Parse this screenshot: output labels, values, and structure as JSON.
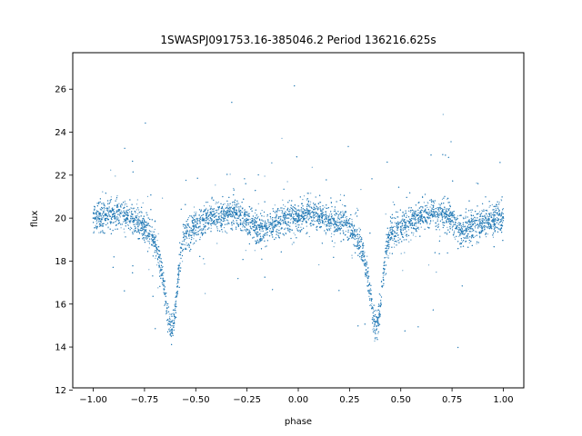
{
  "chart_data": {
    "type": "scatter",
    "title": "1SWASPJ091753.16-385046.2 Period 136216.625s",
    "xlabel": "phase",
    "ylabel": "flux",
    "xlim": [
      -1.1,
      1.1
    ],
    "ylim": [
      12.1,
      27.7
    ],
    "xticks": [
      -1.0,
      -0.75,
      -0.5,
      -0.25,
      0.0,
      0.25,
      0.5,
      0.75,
      1.0
    ],
    "xtick_labels": [
      "−1.00",
      "−0.75",
      "−0.50",
      "−0.25",
      "0.00",
      "0.25",
      "0.50",
      "0.75",
      "1.00"
    ],
    "yticks": [
      12,
      14,
      16,
      18,
      20,
      22,
      24,
      26
    ],
    "ytick_labels": [
      "12",
      "14",
      "16",
      "18",
      "20",
      "22",
      "24",
      "26"
    ],
    "grid": false,
    "point_color": "#1f77b4",
    "series": [
      {
        "x": [
          -1.0,
          -0.95,
          -0.9,
          -0.85,
          -0.8,
          -0.75,
          -0.7,
          -0.68,
          -0.66,
          -0.65,
          -0.64,
          -0.63,
          -0.62,
          -0.61,
          -0.6,
          -0.59,
          -0.58,
          -0.57,
          -0.56,
          -0.54,
          -0.5,
          -0.45,
          -0.4,
          -0.35,
          -0.3,
          -0.25,
          -0.2,
          -0.15,
          -0.1,
          -0.05,
          0.0,
          0.05,
          0.1,
          0.15,
          0.2,
          0.25,
          0.3,
          0.32,
          0.34,
          0.35,
          0.36,
          0.37,
          0.38,
          0.39,
          0.4,
          0.41,
          0.42,
          0.43,
          0.44,
          0.46,
          0.5,
          0.55,
          0.6,
          0.65,
          0.7,
          0.75,
          0.8,
          0.85,
          0.9,
          0.95,
          1.0
        ],
        "y": [
          20.0,
          20.1,
          20.2,
          20.1,
          19.9,
          19.6,
          18.9,
          18.2,
          17.2,
          16.5,
          15.8,
          15.2,
          14.8,
          15.1,
          15.9,
          16.8,
          17.8,
          18.6,
          19.1,
          19.4,
          19.6,
          19.9,
          20.1,
          20.2,
          20.2,
          19.9,
          19.5,
          19.5,
          19.8,
          20.0,
          20.1,
          20.2,
          20.1,
          19.9,
          19.8,
          19.6,
          18.9,
          18.2,
          17.2,
          16.5,
          15.8,
          15.2,
          14.8,
          15.1,
          15.9,
          16.8,
          17.8,
          18.6,
          19.1,
          19.4,
          19.6,
          19.9,
          20.1,
          20.2,
          20.2,
          19.9,
          19.5,
          19.5,
          19.8,
          19.9,
          20.0
        ]
      }
    ]
  }
}
